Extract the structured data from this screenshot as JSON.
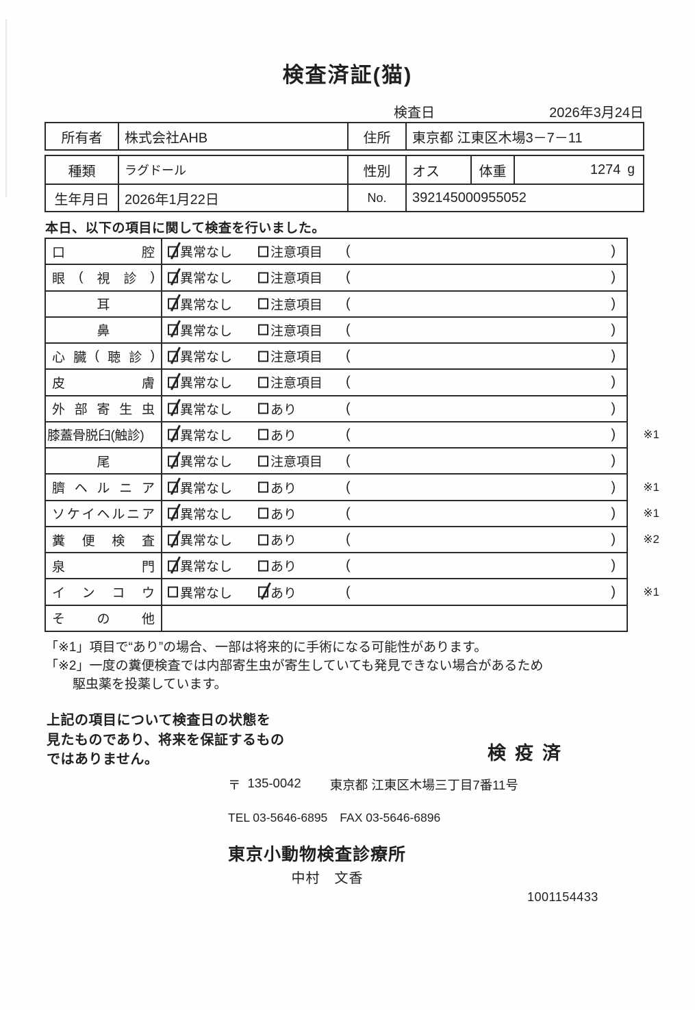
{
  "header": {
    "title": "検査済証(猫)",
    "exam_date_label": "検査日",
    "exam_date_value": "2026年3月24日"
  },
  "owner_table": {
    "owner_label": "所有者",
    "owner_value": "株式会社AHB",
    "address_label": "住所",
    "address_value": "東京都 江東区木場3－7－11"
  },
  "pet_table": {
    "breed_label": "種類",
    "breed_value": "ラグドール",
    "sex_label": "性別",
    "sex_value": "オス",
    "weight_label": "体重",
    "weight_value": "1274",
    "weight_unit": "g",
    "birth_label": "生年月日",
    "birth_value": "2026年1月22日",
    "no_label": "No.",
    "no_value": "392145000955052"
  },
  "intro_text": "本日、以下の項目に関して検査を行いました。",
  "checklist": {
    "paren_open": "(",
    "paren_close": ")",
    "rows": [
      {
        "label": "口腔",
        "display_chars": [
          "口",
          "腔"
        ],
        "align": "justify",
        "options": [
          {
            "text": "異常なし",
            "checked": true
          },
          {
            "text": "注意項目",
            "checked": false
          }
        ],
        "note": "",
        "empty": false
      },
      {
        "label": "眼(視診)",
        "display_chars": [
          "眼",
          "(",
          "視",
          "診",
          ")"
        ],
        "align": "justify",
        "options": [
          {
            "text": "異常なし",
            "checked": true
          },
          {
            "text": "注意項目",
            "checked": false
          }
        ],
        "note": "",
        "empty": false
      },
      {
        "label": "耳",
        "display_chars": [
          "耳"
        ],
        "align": "center",
        "options": [
          {
            "text": "異常なし",
            "checked": true
          },
          {
            "text": "注意項目",
            "checked": false
          }
        ],
        "note": "",
        "empty": false
      },
      {
        "label": "鼻",
        "display_chars": [
          "鼻"
        ],
        "align": "center",
        "options": [
          {
            "text": "異常なし",
            "checked": true
          },
          {
            "text": "注意項目",
            "checked": false
          }
        ],
        "note": "",
        "empty": false
      },
      {
        "label": "心臓(聴診)",
        "display_chars": [
          "心",
          "臓",
          "(",
          "聴",
          "診",
          ")"
        ],
        "align": "justify",
        "options": [
          {
            "text": "異常なし",
            "checked": true
          },
          {
            "text": "注意項目",
            "checked": false
          }
        ],
        "note": "",
        "empty": false
      },
      {
        "label": "皮膚",
        "display_chars": [
          "皮",
          "膚"
        ],
        "align": "justify",
        "options": [
          {
            "text": "異常なし",
            "checked": true
          },
          {
            "text": "注意項目",
            "checked": false
          }
        ],
        "note": "",
        "empty": false
      },
      {
        "label": "外部寄生虫",
        "display_chars": [
          "外",
          "部",
          "寄",
          "生",
          "虫"
        ],
        "align": "justify",
        "options": [
          {
            "text": "異常なし",
            "checked": true
          },
          {
            "text": "あり",
            "checked": false
          }
        ],
        "note": "",
        "empty": false
      },
      {
        "label": "膝蓋骨脱臼(触診)",
        "display_chars": [
          "膝蓋骨脱臼(触診)"
        ],
        "align": "tight",
        "options": [
          {
            "text": "異常なし",
            "checked": true
          },
          {
            "text": "あり",
            "checked": false
          }
        ],
        "note": "※1",
        "empty": false
      },
      {
        "label": "尾",
        "display_chars": [
          "尾"
        ],
        "align": "center",
        "options": [
          {
            "text": "異常なし",
            "checked": true
          },
          {
            "text": "注意項目",
            "checked": false
          }
        ],
        "note": "",
        "empty": false
      },
      {
        "label": "臍ヘルニア",
        "display_chars": [
          "臍",
          "ヘ",
          "ル",
          "ニ",
          "ア"
        ],
        "align": "justify",
        "options": [
          {
            "text": "異常なし",
            "checked": true
          },
          {
            "text": "あり",
            "checked": false
          }
        ],
        "note": "※1",
        "empty": false
      },
      {
        "label": "ソケイヘルニア",
        "display_chars": [
          "ソ",
          "ケ",
          "イ",
          "ヘ",
          "ル",
          "ニ",
          "ア"
        ],
        "align": "justify",
        "options": [
          {
            "text": "異常なし",
            "checked": true
          },
          {
            "text": "あり",
            "checked": false
          }
        ],
        "note": "※1",
        "empty": false
      },
      {
        "label": "糞便検査",
        "display_chars": [
          "糞",
          "便",
          "検",
          "査"
        ],
        "align": "justify",
        "options": [
          {
            "text": "異常なし",
            "checked": true
          },
          {
            "text": "あり",
            "checked": false
          }
        ],
        "note": "※2",
        "empty": false
      },
      {
        "label": "泉門",
        "display_chars": [
          "泉",
          "門"
        ],
        "align": "justify",
        "options": [
          {
            "text": "異常なし",
            "checked": true
          },
          {
            "text": "あり",
            "checked": false
          }
        ],
        "note": "",
        "empty": false
      },
      {
        "label": "インコウ",
        "display_chars": [
          "イ",
          "ン",
          "コ",
          "ウ"
        ],
        "align": "justify",
        "options": [
          {
            "text": "異常なし",
            "checked": false
          },
          {
            "text": "あり",
            "checked": true
          }
        ],
        "note": "※1",
        "empty": false
      },
      {
        "label": "その他",
        "display_chars": [
          "そ",
          "の",
          "他"
        ],
        "align": "justify",
        "options": [],
        "note": "",
        "empty": true
      }
    ]
  },
  "footnotes": {
    "line1": "「※1」項目で“あり”の場合、一部は将来的に手術になる可能性があります。",
    "line2": "「※2」一度の糞便検査では内部寄生虫が寄生していても発見できない場合があるため",
    "line3": "駆虫薬を投薬しています。"
  },
  "statement": {
    "line1": "上記の項目について検査日の状態を",
    "line2": "見たものであり、将来を保証するもの",
    "line3": "ではありません。"
  },
  "inspection_stamp": "検疫済",
  "clinic": {
    "postal_mark": "〒",
    "postal_code": "135-0042",
    "address": "東京都 江東区木場三丁目7番11号",
    "tel": "TEL 03-5646-6895",
    "fax": "FAX 03-5646-6896",
    "name": "東京小動物検査診療所",
    "veterinarian": "中村　文香",
    "document_number": "1001154433"
  }
}
